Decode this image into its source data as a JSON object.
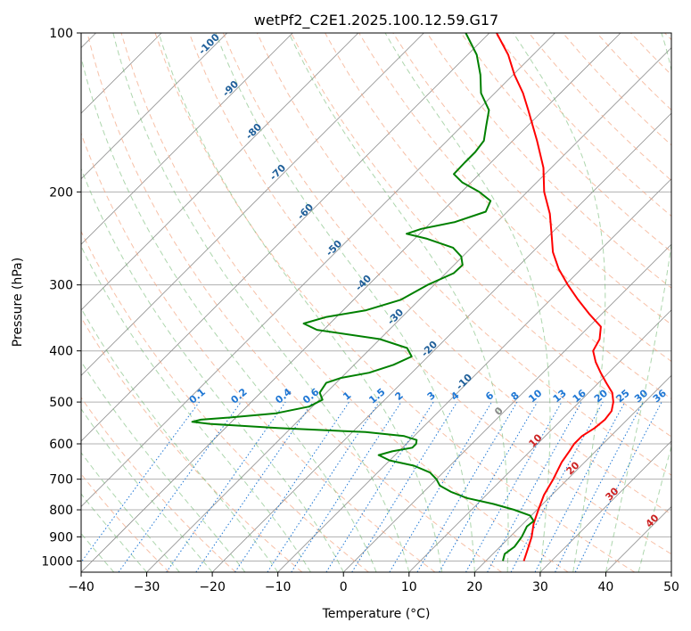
{
  "chart_data": {
    "type": "line",
    "subtype": "skew-t log-p",
    "title": "wetPf2_C2E1.2025.100.12.59.G17",
    "xlabel": "Temperature (°C)",
    "ylabel": "Pressure (hPa)",
    "xlim": [
      -40,
      50
    ],
    "ylim": [
      1050,
      100
    ],
    "y_scale": "log",
    "grid": true,
    "x_ticks": [
      -40,
      -30,
      -20,
      -10,
      0,
      10,
      20,
      30,
      40,
      50
    ],
    "y_ticks": [
      100,
      200,
      300,
      400,
      500,
      600,
      700,
      800,
      900,
      1000
    ],
    "colors": {
      "temperature": "#ff0000",
      "dewpoint": "#008000",
      "dry_adiabats": "#f4a582",
      "moist_adiabats": "#6ab46a",
      "mixing_ratio": "#1f77d4",
      "skewed_isotherms": "#8c8c8c",
      "isotherm_labels": "#1f5f99",
      "positive_isotherm_labels": "#cc2222"
    },
    "isotherm_labels": [
      "-100",
      "-90",
      "-80",
      "-70",
      "-60",
      "-50",
      "-40",
      "-30",
      "-20",
      "-10",
      "0",
      "10",
      "20",
      "30",
      "40"
    ],
    "mixing_ratio_labels": [
      "0.1",
      "0.2",
      "0.4",
      "0.6",
      "1",
      "1.5",
      "2",
      "3",
      "4",
      "6",
      "8",
      "10",
      "13",
      "16",
      "20",
      "25",
      "30",
      "36"
    ],
    "series": [
      {
        "key": "temperature",
        "points": [
          [
            1000,
            25.8
          ],
          [
            950,
            24.6
          ],
          [
            900,
            23.3
          ],
          [
            850,
            21.6
          ],
          [
            800,
            20.2
          ],
          [
            750,
            18.8
          ],
          [
            700,
            17.8
          ],
          [
            650,
            16.5
          ],
          [
            620,
            16.0
          ],
          [
            600,
            15.6
          ],
          [
            580,
            15.6
          ],
          [
            560,
            16.3
          ],
          [
            540,
            16.6
          ],
          [
            520,
            16.3
          ],
          [
            500,
            15.2
          ],
          [
            480,
            13.6
          ],
          [
            460,
            11.2
          ],
          [
            440,
            8.8
          ],
          [
            420,
            6.4
          ],
          [
            400,
            4.3
          ],
          [
            380,
            3.5
          ],
          [
            360,
            1.8
          ],
          [
            340,
            -2.0
          ],
          [
            320,
            -5.8
          ],
          [
            300,
            -9.6
          ],
          [
            280,
            -13.4
          ],
          [
            260,
            -16.9
          ],
          [
            240,
            -19.9
          ],
          [
            220,
            -23.2
          ],
          [
            200,
            -27.4
          ],
          [
            180,
            -31.2
          ],
          [
            160,
            -36.3
          ],
          [
            140,
            -42.3
          ],
          [
            130,
            -45.7
          ],
          [
            120,
            -49.8
          ],
          [
            110,
            -53.8
          ],
          [
            100,
            -58.9
          ]
        ]
      },
      {
        "key": "dewpoint",
        "points": [
          [
            1000,
            22.6
          ],
          [
            970,
            21.8
          ],
          [
            940,
            22.2
          ],
          [
            900,
            21.8
          ],
          [
            880,
            21.4
          ],
          [
            860,
            21.0
          ],
          [
            840,
            21.2
          ],
          [
            820,
            19.8
          ],
          [
            800,
            16.5
          ],
          [
            780,
            12.5
          ],
          [
            760,
            7.5
          ],
          [
            740,
            4.2
          ],
          [
            720,
            1.5
          ],
          [
            700,
            0.0
          ],
          [
            680,
            -2.0
          ],
          [
            660,
            -5.5
          ],
          [
            645,
            -10.0
          ],
          [
            630,
            -12.5
          ],
          [
            620,
            -11.0
          ],
          [
            610,
            -8.5
          ],
          [
            600,
            -8.5
          ],
          [
            590,
            -9.0
          ],
          [
            580,
            -11.5
          ],
          [
            570,
            -18.0
          ],
          [
            560,
            -32.0
          ],
          [
            550,
            -43.0
          ],
          [
            545,
            -46.0
          ],
          [
            540,
            -45.0
          ],
          [
            535,
            -41.0
          ],
          [
            525,
            -34.5
          ],
          [
            510,
            -30.5
          ],
          [
            495,
            -29.5
          ],
          [
            480,
            -31.0
          ],
          [
            460,
            -31.5
          ],
          [
            450,
            -30.0
          ],
          [
            440,
            -26.5
          ],
          [
            425,
            -24.0
          ],
          [
            410,
            -22.5
          ],
          [
            395,
            -24.5
          ],
          [
            380,
            -30.0
          ],
          [
            365,
            -41.0
          ],
          [
            355,
            -44.0
          ],
          [
            345,
            -41.5
          ],
          [
            335,
            -36.5
          ],
          [
            320,
            -32.8
          ],
          [
            300,
            -31.0
          ],
          [
            285,
            -28.8
          ],
          [
            275,
            -28.7
          ],
          [
            265,
            -30.2
          ],
          [
            255,
            -32.8
          ],
          [
            245,
            -38.3
          ],
          [
            240,
            -42.0
          ],
          [
            235,
            -40.5
          ],
          [
            228,
            -36.4
          ],
          [
            218,
            -33.3
          ],
          [
            208,
            -34.2
          ],
          [
            200,
            -37.3
          ],
          [
            192,
            -41.3
          ],
          [
            185,
            -43.9
          ],
          [
            176,
            -44.0
          ],
          [
            168,
            -44.0
          ],
          [
            160,
            -44.4
          ],
          [
            150,
            -46.3
          ],
          [
            140,
            -48.3
          ],
          [
            130,
            -52.1
          ],
          [
            120,
            -55.0
          ],
          [
            110,
            -58.6
          ],
          [
            100,
            -63.6
          ]
        ]
      }
    ]
  }
}
